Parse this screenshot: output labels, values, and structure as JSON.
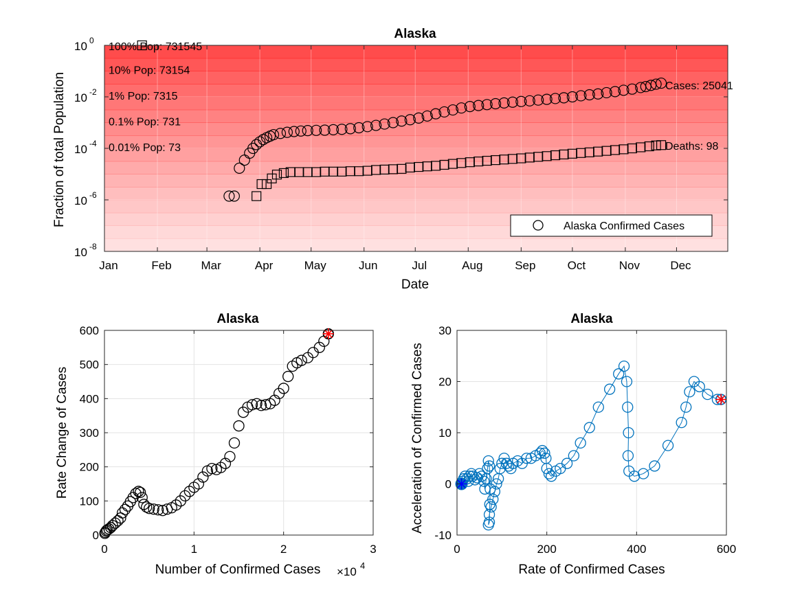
{
  "chart_data": [
    {
      "id": "top",
      "type": "scatter",
      "title": "Alaska",
      "xlabel": "Date",
      "ylabel": "Fraction of total Population",
      "y_scale": "log",
      "ylim": [
        1e-08,
        1
      ],
      "y_ticks": [
        {
          "base": "10",
          "exp": "-8",
          "value": 1e-08
        },
        {
          "base": "10",
          "exp": "-6",
          "value": 1e-06
        },
        {
          "base": "10",
          "exp": "-4",
          "value": 0.0001
        },
        {
          "base": "10",
          "exp": "-2",
          "value": 0.01
        },
        {
          "base": "10",
          "exp": "0",
          "value": 1
        }
      ],
      "x_ticks": [
        "Jan",
        "Feb",
        "Mar",
        "Apr",
        "May",
        "Jun",
        "Jul",
        "Aug",
        "Sep",
        "Oct",
        "Nov",
        "Dec"
      ],
      "x_tick_days": [
        1,
        32,
        61,
        92,
        122,
        153,
        183,
        214,
        245,
        275,
        306,
        336
      ],
      "xlim_days": [
        1,
        366
      ],
      "grid": true,
      "legend": {
        "label": "Alaska Confirmed Cases",
        "placement": "bottom-right"
      },
      "background_color": "#ff0000",
      "population_bands": [
        {
          "label": "100% Pop: 731545",
          "fraction": 1
        },
        {
          "label": "10% Pop: 73154",
          "fraction": 0.1
        },
        {
          "label": "1% Pop: 7315",
          "fraction": 0.01
        },
        {
          "label": "0.1% Pop: 731",
          "fraction": 0.001
        },
        {
          "label": "0.01% Pop: 73",
          "fraction": 0.0001
        }
      ],
      "end_labels": {
        "cases": "Cases: 25041",
        "deaths": "Deaths: 98"
      },
      "cases_series": {
        "name": "Alaska Confirmed Cases",
        "marker": "circle",
        "points": [
          [
            74,
            1.4e-06
          ],
          [
            77,
            1.4e-06
          ],
          [
            80,
            1.7e-05
          ],
          [
            83,
            3.5e-05
          ],
          [
            86,
            6.5e-05
          ],
          [
            88,
            0.0001
          ],
          [
            90,
            0.00014
          ],
          [
            92,
            0.00018
          ],
          [
            94,
            0.00022
          ],
          [
            96,
            0.00026
          ],
          [
            98,
            0.0003
          ],
          [
            100,
            0.00034
          ],
          [
            104,
            0.00038
          ],
          [
            108,
            0.00042
          ],
          [
            112,
            0.00045
          ],
          [
            116,
            0.00047
          ],
          [
            120,
            0.00049
          ],
          [
            125,
            0.0005
          ],
          [
            130,
            0.00051
          ],
          [
            135,
            0.00053
          ],
          [
            140,
            0.00055
          ],
          [
            145,
            0.00058
          ],
          [
            150,
            0.00063
          ],
          [
            155,
            0.0007
          ],
          [
            160,
            0.00078
          ],
          [
            165,
            0.00088
          ],
          [
            170,
            0.001
          ],
          [
            175,
            0.00115
          ],
          [
            180,
            0.0013
          ],
          [
            185,
            0.0015
          ],
          [
            190,
            0.0018
          ],
          [
            195,
            0.0022
          ],
          [
            200,
            0.0026
          ],
          [
            205,
            0.0031
          ],
          [
            210,
            0.0037
          ],
          [
            215,
            0.0042
          ],
          [
            220,
            0.0046
          ],
          [
            225,
            0.005
          ],
          [
            230,
            0.0054
          ],
          [
            235,
            0.0058
          ],
          [
            240,
            0.0062
          ],
          [
            245,
            0.0066
          ],
          [
            250,
            0.007
          ],
          [
            255,
            0.0075
          ],
          [
            260,
            0.008
          ],
          [
            265,
            0.0086
          ],
          [
            270,
            0.0092
          ],
          [
            275,
            0.01
          ],
          [
            280,
            0.011
          ],
          [
            285,
            0.012
          ],
          [
            290,
            0.013
          ],
          [
            295,
            0.0145
          ],
          [
            300,
            0.016
          ],
          [
            305,
            0.018
          ],
          [
            310,
            0.02
          ],
          [
            315,
            0.023
          ],
          [
            318,
            0.025
          ],
          [
            321,
            0.028
          ],
          [
            324,
            0.031
          ],
          [
            327,
            0.034
          ]
        ]
      },
      "deaths_series": {
        "name": "Deaths",
        "marker": "square",
        "points": [
          [
            23,
            1.0
          ],
          [
            90,
            1.4e-06
          ],
          [
            93,
            4.1e-06
          ],
          [
            96,
            4.1e-06
          ],
          [
            99,
            6.8e-06
          ],
          [
            102,
            9.6e-06
          ],
          [
            106,
            1.1e-05
          ],
          [
            110,
            1.2e-05
          ],
          [
            115,
            1.2e-05
          ],
          [
            120,
            1.2e-05
          ],
          [
            125,
            1.2e-05
          ],
          [
            130,
            1.25e-05
          ],
          [
            135,
            1.25e-05
          ],
          [
            140,
            1.25e-05
          ],
          [
            145,
            1.3e-05
          ],
          [
            150,
            1.3e-05
          ],
          [
            155,
            1.35e-05
          ],
          [
            160,
            1.45e-05
          ],
          [
            165,
            1.5e-05
          ],
          [
            170,
            1.55e-05
          ],
          [
            175,
            1.6e-05
          ],
          [
            180,
            1.8e-05
          ],
          [
            185,
            1.9e-05
          ],
          [
            190,
            2e-05
          ],
          [
            195,
            2.1e-05
          ],
          [
            200,
            2.3e-05
          ],
          [
            205,
            2.5e-05
          ],
          [
            210,
            2.7e-05
          ],
          [
            215,
            2.9e-05
          ],
          [
            220,
            3.1e-05
          ],
          [
            225,
            3.3e-05
          ],
          [
            230,
            3.5e-05
          ],
          [
            235,
            3.7e-05
          ],
          [
            240,
            3.9e-05
          ],
          [
            245,
            4.1e-05
          ],
          [
            250,
            4.4e-05
          ],
          [
            255,
            4.7e-05
          ],
          [
            260,
            5e-05
          ],
          [
            265,
            5.4e-05
          ],
          [
            270,
            5.8e-05
          ],
          [
            275,
            6.2e-05
          ],
          [
            280,
            6.6e-05
          ],
          [
            285,
            7e-05
          ],
          [
            290,
            7.5e-05
          ],
          [
            295,
            8e-05
          ],
          [
            300,
            8.6e-05
          ],
          [
            305,
            9.2e-05
          ],
          [
            310,
            0.0001
          ],
          [
            315,
            0.00011
          ],
          [
            320,
            0.00012
          ],
          [
            324,
            0.00013
          ],
          [
            327,
            0.000134
          ]
        ]
      }
    },
    {
      "id": "bottom-left",
      "type": "scatter",
      "title": "Alaska",
      "xlabel": "Number of Confirmed Cases",
      "x_multiplier": {
        "base": "×10",
        "exp": "4"
      },
      "ylabel": "Rate Change of Cases",
      "xlim": [
        0,
        3
      ],
      "ylim": [
        0,
        600
      ],
      "x_ticks": [
        "0",
        "1",
        "2",
        "3"
      ],
      "y_ticks": [
        "0",
        "100",
        "200",
        "300",
        "400",
        "500",
        "600"
      ],
      "grid": true,
      "marker": "circle",
      "marker_color": "#000000",
      "last_point_marker": "red-star",
      "x_unit_note": "x in units of 10^4",
      "points": [
        [
          0.005,
          5
        ],
        [
          0.01,
          8
        ],
        [
          0.02,
          12
        ],
        [
          0.03,
          15
        ],
        [
          0.05,
          18
        ],
        [
          0.07,
          22
        ],
        [
          0.09,
          28
        ],
        [
          0.12,
          35
        ],
        [
          0.15,
          42
        ],
        [
          0.18,
          50
        ],
        [
          0.2,
          65
        ],
        [
          0.23,
          75
        ],
        [
          0.26,
          85
        ],
        [
          0.29,
          98
        ],
        [
          0.32,
          110
        ],
        [
          0.35,
          122
        ],
        [
          0.38,
          128
        ],
        [
          0.4,
          125
        ],
        [
          0.42,
          110
        ],
        [
          0.44,
          90
        ],
        [
          0.47,
          82
        ],
        [
          0.5,
          78
        ],
        [
          0.55,
          76
        ],
        [
          0.6,
          74
        ],
        [
          0.65,
          72
        ],
        [
          0.7,
          76
        ],
        [
          0.75,
          80
        ],
        [
          0.8,
          88
        ],
        [
          0.85,
          100
        ],
        [
          0.9,
          115
        ],
        [
          0.95,
          128
        ],
        [
          1.0,
          140
        ],
        [
          1.05,
          150
        ],
        [
          1.1,
          170
        ],
        [
          1.15,
          188
        ],
        [
          1.2,
          195
        ],
        [
          1.25,
          192
        ],
        [
          1.3,
          198
        ],
        [
          1.35,
          210
        ],
        [
          1.4,
          230
        ],
        [
          1.45,
          270
        ],
        [
          1.5,
          320
        ],
        [
          1.55,
          360
        ],
        [
          1.6,
          375
        ],
        [
          1.65,
          382
        ],
        [
          1.7,
          385
        ],
        [
          1.75,
          380
        ],
        [
          1.8,
          382
        ],
        [
          1.85,
          385
        ],
        [
          1.9,
          395
        ],
        [
          1.95,
          415
        ],
        [
          2.0,
          430
        ],
        [
          2.05,
          465
        ],
        [
          2.1,
          495
        ],
        [
          2.15,
          505
        ],
        [
          2.2,
          512
        ],
        [
          2.27,
          520
        ],
        [
          2.33,
          535
        ],
        [
          2.4,
          550
        ],
        [
          2.45,
          568
        ],
        [
          2.5,
          590
        ]
      ]
    },
    {
      "id": "bottom-right",
      "type": "line",
      "title": "Alaska",
      "xlabel": "Rate of Confirmed Cases",
      "ylabel": "Acceleration of Confirmed Cases",
      "xlim": [
        0,
        600
      ],
      "ylim": [
        -10,
        30
      ],
      "x_ticks": [
        "0",
        "200",
        "400",
        "600"
      ],
      "y_ticks": [
        "-10",
        "0",
        "10",
        "20",
        "30"
      ],
      "grid": true,
      "marker": "circle",
      "line_color": "#0072bd",
      "first_point_marker": "blue-star",
      "last_point_marker": "red-star",
      "points": [
        [
          10,
          0
        ],
        [
          12,
          0.5
        ],
        [
          15,
          1
        ],
        [
          18,
          1.5
        ],
        [
          22,
          1
        ],
        [
          25,
          0.5
        ],
        [
          28,
          1.5
        ],
        [
          32,
          2
        ],
        [
          35,
          1.5
        ],
        [
          40,
          0.8
        ],
        [
          45,
          1.2
        ],
        [
          50,
          2
        ],
        [
          55,
          1.5
        ],
        [
          60,
          0.5
        ],
        [
          62,
          -1
        ],
        [
          65,
          1
        ],
        [
          68,
          3
        ],
        [
          70,
          4.5
        ],
        [
          72,
          3.5
        ],
        [
          74,
          -1
        ],
        [
          73,
          -4
        ],
        [
          72,
          -7.5
        ],
        [
          70,
          -8
        ],
        [
          72,
          -6
        ],
        [
          76,
          -4.5
        ],
        [
          80,
          -3
        ],
        [
          84,
          -1.5
        ],
        [
          88,
          0
        ],
        [
          92,
          1
        ],
        [
          96,
          3
        ],
        [
          100,
          4
        ],
        [
          105,
          5
        ],
        [
          110,
          4
        ],
        [
          115,
          3.5
        ],
        [
          120,
          3
        ],
        [
          125,
          4
        ],
        [
          135,
          4.5
        ],
        [
          145,
          4
        ],
        [
          155,
          5
        ],
        [
          165,
          5
        ],
        [
          175,
          5.5
        ],
        [
          185,
          6
        ],
        [
          190,
          6.5
        ],
        [
          195,
          6
        ],
        [
          198,
          5
        ],
        [
          200,
          3
        ],
        [
          205,
          2
        ],
        [
          210,
          1.5
        ],
        [
          220,
          2.5
        ],
        [
          230,
          3
        ],
        [
          245,
          4
        ],
        [
          260,
          5.5
        ],
        [
          275,
          8
        ],
        [
          295,
          11
        ],
        [
          315,
          15
        ],
        [
          340,
          18.5
        ],
        [
          360,
          21.5
        ],
        [
          372,
          23
        ],
        [
          378,
          20
        ],
        [
          380,
          15
        ],
        [
          382,
          10
        ],
        [
          381,
          5.5
        ],
        [
          383,
          2.5
        ],
        [
          395,
          1.5
        ],
        [
          415,
          2
        ],
        [
          440,
          3.5
        ],
        [
          470,
          7.5
        ],
        [
          500,
          12
        ],
        [
          510,
          15
        ],
        [
          518,
          18
        ],
        [
          528,
          20
        ],
        [
          540,
          19
        ],
        [
          558,
          17.5
        ],
        [
          580,
          16.5
        ],
        [
          588,
          16.5
        ]
      ]
    }
  ]
}
